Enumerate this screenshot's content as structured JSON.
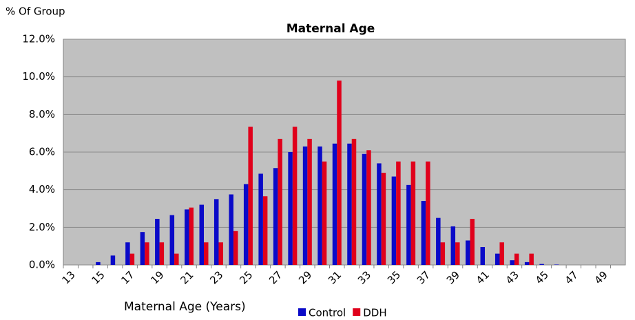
{
  "chart_data": {
    "type": "bar",
    "title": "Maternal Age",
    "y_label": "% Of Group",
    "x_label": "Maternal Age (Years)",
    "categories": [
      13,
      null,
      15,
      null,
      17,
      null,
      19,
      null,
      21,
      null,
      23,
      null,
      25,
      null,
      27,
      null,
      29,
      null,
      31,
      null,
      33,
      null,
      35,
      null,
      37,
      null,
      39,
      null,
      41,
      null,
      43,
      null,
      45,
      null,
      47,
      null,
      49,
      null
    ],
    "series": [
      {
        "name": "Control",
        "color": "#0a0ac8",
        "values": [
          0,
          0,
          0.15,
          0.5,
          1.2,
          1.75,
          2.45,
          2.65,
          2.95,
          3.2,
          3.5,
          3.75,
          4.3,
          4.85,
          5.15,
          6.0,
          6.3,
          6.3,
          6.45,
          6.45,
          5.9,
          5.4,
          4.7,
          4.25,
          3.4,
          2.5,
          2.05,
          1.3,
          0.95,
          0.6,
          0.25,
          0.15,
          0.05,
          0.02,
          0,
          0,
          0,
          0
        ]
      },
      {
        "name": "DDH",
        "color": "#e0001b",
        "values": [
          0,
          0,
          0,
          0,
          0.6,
          1.2,
          1.2,
          0.6,
          3.05,
          1.2,
          1.2,
          1.8,
          7.35,
          3.65,
          6.7,
          7.35,
          6.7,
          5.5,
          9.8,
          6.7,
          6.1,
          4.9,
          5.5,
          5.5,
          5.5,
          1.2,
          1.2,
          2.45,
          0,
          1.2,
          0.6,
          0.6,
          0,
          0,
          0,
          0,
          0,
          0
        ]
      }
    ],
    "ylim": [
      0,
      12
    ],
    "yticks": [
      {
        "value": 0,
        "label": "0.0%"
      },
      {
        "value": 2,
        "label": "2.0%"
      },
      {
        "value": 4,
        "label": "4.0%"
      },
      {
        "value": 6,
        "label": "6.0%"
      },
      {
        "value": 8,
        "label": "8.0%"
      },
      {
        "value": 10,
        "label": "10.0%"
      },
      {
        "value": 12,
        "label": "12.0%"
      }
    ],
    "grid": true,
    "legend": "bottom"
  }
}
